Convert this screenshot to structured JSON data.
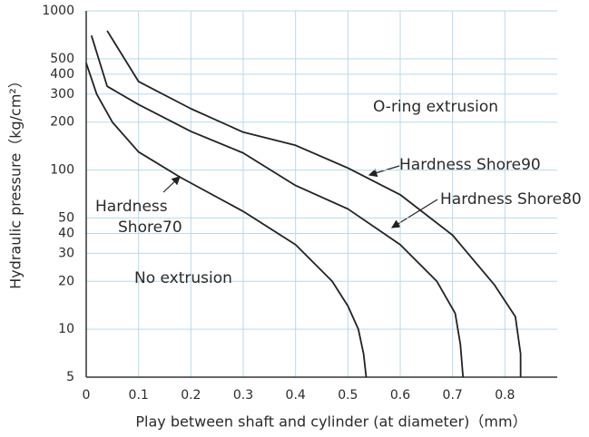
{
  "chart_data": {
    "type": "line",
    "x_label": "Play between shaft and cylinder (at diameter)（mm）",
    "y_label": "Hydraulic pressure（kg/cm²）",
    "xlim": [
      0,
      0.9
    ],
    "xticks": [
      0,
      0.1,
      0.2,
      0.3,
      0.4,
      0.5,
      0.6,
      0.7,
      0.8
    ],
    "ylim": [
      5,
      1000
    ],
    "yticks": [
      5,
      10,
      20,
      30,
      40,
      50,
      100,
      200,
      300,
      400,
      500,
      1000
    ],
    "log_y": true,
    "grid": true,
    "series": [
      {
        "color": "#222222",
        "x": [
          0,
          0.02,
          0.05,
          0.1,
          0.18,
          0.3,
          0.4,
          0.47,
          0.5,
          0.52,
          0.53,
          0.535
        ],
        "values": [
          470,
          300,
          200,
          130,
          90,
          55,
          34,
          20,
          14,
          10,
          7,
          5
        ]
      },
      {
        "color": "#222222",
        "x": [
          0.01,
          0.04,
          0.1,
          0.2,
          0.3,
          0.4,
          0.5,
          0.6,
          0.67,
          0.705,
          0.715,
          0.72
        ],
        "values": [
          700,
          336,
          258,
          175,
          128,
          80,
          57,
          34,
          20,
          12.6,
          8,
          5
        ]
      },
      {
        "color": "#222222",
        "x": [
          0.04,
          0.1,
          0.2,
          0.3,
          0.4,
          0.5,
          0.6,
          0.7,
          0.78,
          0.82,
          0.83,
          0.83
        ],
        "values": [
          750,
          360,
          243,
          173,
          143,
          103,
          70,
          39,
          19,
          12,
          7,
          5
        ]
      }
    ],
    "annotations": [
      "O-ring extrusion",
      "Hardness Shore90",
      "Hardness Shore80",
      "Hardness",
      "Shore70",
      "No extrusion"
    ]
  }
}
